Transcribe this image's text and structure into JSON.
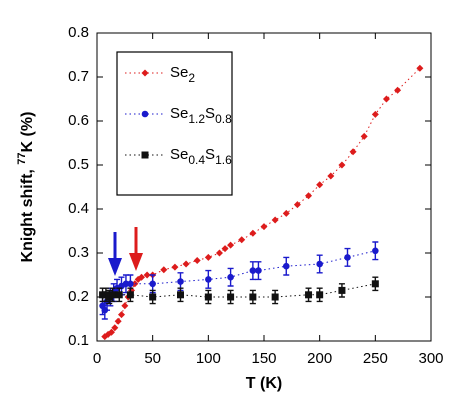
{
  "chart_data": {
    "type": "scatter",
    "xlabel": "T (K)",
    "ylabel": "Knight shift, 77K (%)",
    "xlim": [
      0,
      300
    ],
    "ylim": [
      0.1,
      0.8
    ],
    "xticks": [
      0,
      50,
      100,
      150,
      200,
      250,
      300
    ],
    "yticks": [
      0.1,
      0.2,
      0.3,
      0.4,
      0.5,
      0.6,
      0.7,
      0.8
    ],
    "series": [
      {
        "name": "Se2",
        "color": "#dd1c1c",
        "marker": "diamond",
        "x": [
          7,
          10,
          13,
          16,
          19,
          22,
          25,
          28,
          31,
          34,
          37,
          40,
          45,
          50,
          60,
          70,
          80,
          90,
          100,
          110,
          115,
          120,
          130,
          140,
          150,
          160,
          170,
          180,
          190,
          200,
          210,
          220,
          230,
          240,
          250,
          260,
          270,
          290
        ],
        "values": [
          0.11,
          0.115,
          0.12,
          0.13,
          0.145,
          0.16,
          0.18,
          0.2,
          0.215,
          0.23,
          0.24,
          0.245,
          0.25,
          0.25,
          0.262,
          0.268,
          0.275,
          0.283,
          0.29,
          0.3,
          0.31,
          0.318,
          0.33,
          0.345,
          0.36,
          0.375,
          0.39,
          0.41,
          0.43,
          0.455,
          0.475,
          0.5,
          0.53,
          0.565,
          0.615,
          0.65,
          0.67,
          0.72
        ]
      },
      {
        "name": "Se1.2S0.8",
        "color": "#1a1acc",
        "marker": "circle",
        "x": [
          5,
          7,
          9,
          12,
          15,
          18,
          22,
          26,
          30,
          50,
          75,
          100,
          120,
          140,
          145,
          170,
          200,
          225,
          250
        ],
        "values": [
          0.18,
          0.17,
          0.19,
          0.2,
          0.21,
          0.22,
          0.225,
          0.23,
          0.23,
          0.23,
          0.235,
          0.24,
          0.245,
          0.26,
          0.26,
          0.27,
          0.275,
          0.29,
          0.305
        ],
        "errors": [
          0.02,
          0.02,
          0.02,
          0.02,
          0.02,
          0.02,
          0.02,
          0.02,
          0.02,
          0.02,
          0.02,
          0.02,
          0.02,
          0.02,
          0.02,
          0.02,
          0.02,
          0.02,
          0.02
        ]
      },
      {
        "name": "Se0.4S1.6",
        "color": "#111111",
        "marker": "square",
        "x": [
          5,
          8,
          11,
          14,
          20,
          30,
          50,
          75,
          100,
          120,
          140,
          160,
          190,
          200,
          220,
          250
        ],
        "values": [
          0.205,
          0.205,
          0.2,
          0.205,
          0.205,
          0.205,
          0.2,
          0.205,
          0.2,
          0.2,
          0.2,
          0.2,
          0.205,
          0.205,
          0.215,
          0.23
        ],
        "errors": [
          0.015,
          0.015,
          0.015,
          0.015,
          0.015,
          0.015,
          0.015,
          0.015,
          0.015,
          0.015,
          0.015,
          0.015,
          0.015,
          0.015,
          0.015,
          0.015
        ]
      }
    ]
  }
}
